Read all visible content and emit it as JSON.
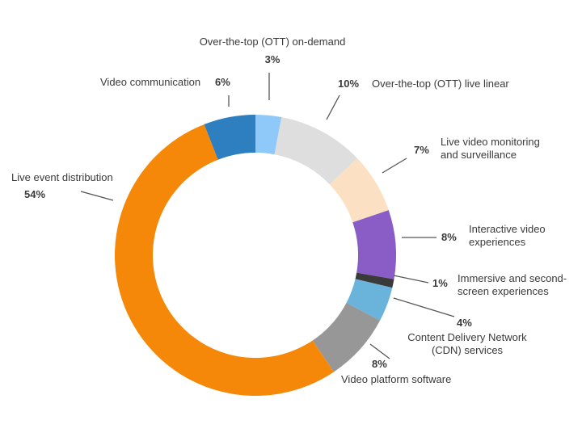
{
  "chart_data": {
    "type": "pie",
    "variant": "donut",
    "title": "",
    "slices": [
      {
        "label": [
          "Over-the-top (OTT) on-demand"
        ],
        "value": 3,
        "value_label": "3%",
        "color": "#8ec9f9"
      },
      {
        "label": [
          "Over-the-top (OTT) live linear"
        ],
        "value": 10,
        "value_label": "10%",
        "color": "#dedede"
      },
      {
        "label": [
          "Live video monitoring",
          "and surveillance"
        ],
        "value": 7,
        "value_label": "7%",
        "color": "#fce0c3"
      },
      {
        "label": [
          "Interactive video",
          "experiences"
        ],
        "value": 8,
        "value_label": "8%",
        "color": "#8a5dc6"
      },
      {
        "label": [
          "Immersive and second-",
          "screen experiences"
        ],
        "value": 1,
        "value_label": "1%",
        "color": "#3a3a3a"
      },
      {
        "label": [
          "Content Delivery Network",
          "(CDN) services"
        ],
        "value": 4,
        "value_label": "4%",
        "color": "#6ab4dc"
      },
      {
        "label": [
          "Video platform software"
        ],
        "value": 8,
        "value_label": "8%",
        "color": "#979797"
      },
      {
        "label": [
          "Live event distribution"
        ],
        "value": 54,
        "value_label": "54%",
        "color": "#f58808"
      },
      {
        "label": [
          "Video communication"
        ],
        "value": 6,
        "value_label": "6%",
        "color": "#2e7fbf"
      }
    ]
  }
}
